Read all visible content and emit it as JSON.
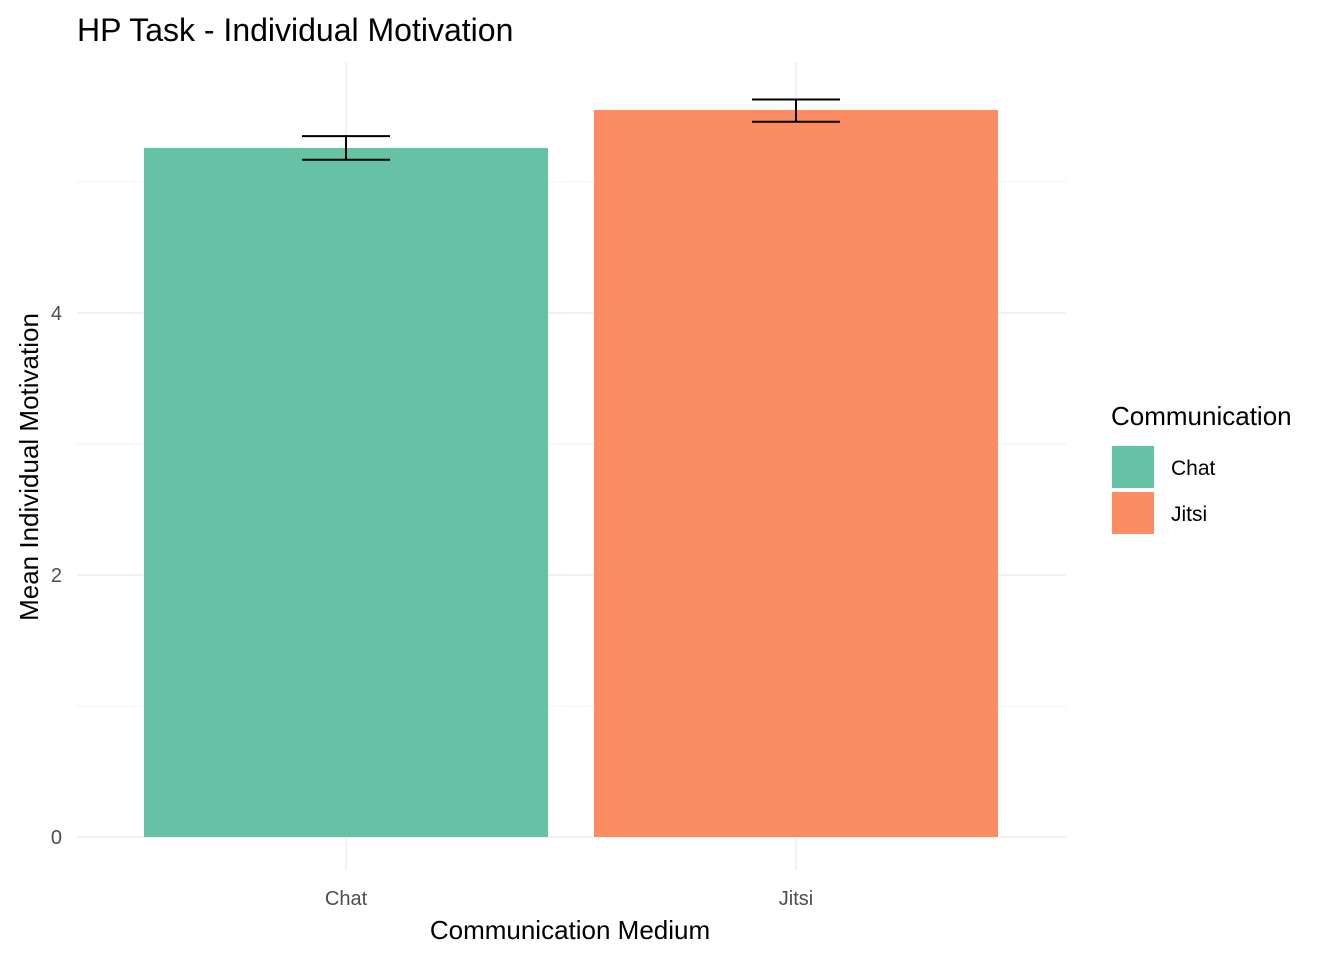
{
  "chart_data": {
    "type": "bar",
    "title": "HP Task - Individual Motivation",
    "xlabel": "Communication Medium",
    "ylabel": "Mean Individual Motivation",
    "categories": [
      "Chat",
      "Jitsi"
    ],
    "values": [
      5.26,
      5.55
    ],
    "error_bars": [
      {
        "low": 5.17,
        "high": 5.35
      },
      {
        "low": 5.46,
        "high": 5.63
      }
    ],
    "colors": [
      "#66c2a5",
      "#fc8d62"
    ],
    "ylim": [
      0,
      5.8
    ],
    "yticks": [
      0,
      2,
      4
    ],
    "grid": true,
    "legend": {
      "title": "Communication",
      "position": "right",
      "items": [
        "Chat",
        "Jitsi"
      ]
    }
  }
}
